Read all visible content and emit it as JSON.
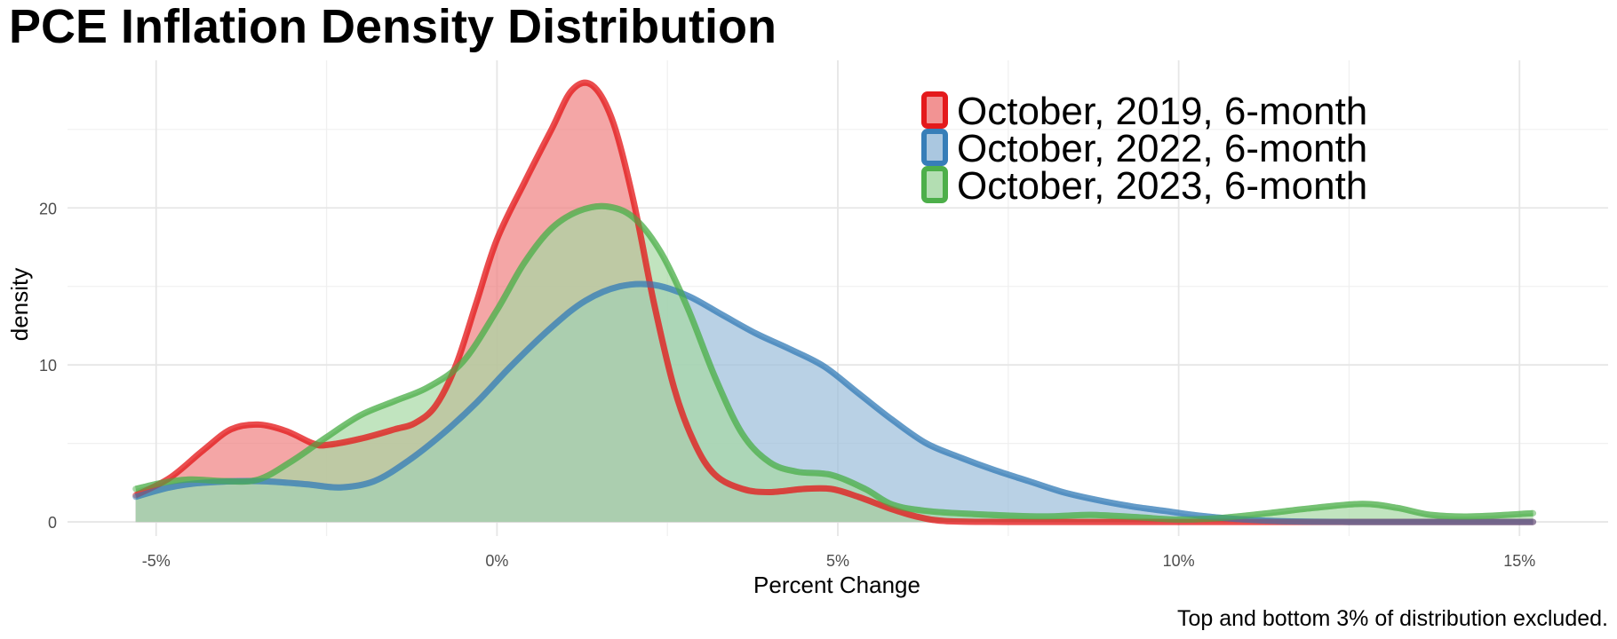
{
  "chart_data": {
    "type": "area",
    "title": "PCE Inflation Density Distribution",
    "xlabel": "Percent Change",
    "ylabel": "density",
    "caption": "Top and bottom 3% of distribution excluded.",
    "xlim": [
      -6.3,
      16.3
    ],
    "ylim": [
      -0.9,
      29.4
    ],
    "x_ticks": [
      -5,
      0,
      5,
      10,
      15
    ],
    "x_tick_labels": [
      "-5%",
      "0%",
      "5%",
      "10%",
      "15%"
    ],
    "y_ticks": [
      0,
      10,
      20
    ],
    "y_tick_labels": [
      "0",
      "10",
      "20"
    ],
    "grid": true,
    "legend_position": "top-right",
    "series": [
      {
        "name": "October, 2019, 6-month",
        "color": "#E41A1C",
        "fill": "#F08080",
        "points": [
          [
            -5.3,
            1.7
          ],
          [
            -4.8,
            2.8
          ],
          [
            -4.3,
            4.6
          ],
          [
            -3.9,
            5.9
          ],
          [
            -3.5,
            6.2
          ],
          [
            -3.1,
            5.8
          ],
          [
            -2.7,
            5.0
          ],
          [
            -2.5,
            4.9
          ],
          [
            -2.0,
            5.3
          ],
          [
            -1.5,
            5.9
          ],
          [
            -1.2,
            6.3
          ],
          [
            -0.9,
            7.4
          ],
          [
            -0.6,
            10.0
          ],
          [
            -0.3,
            14.0
          ],
          [
            0.0,
            18.0
          ],
          [
            0.4,
            21.6
          ],
          [
            0.8,
            25.0
          ],
          [
            1.1,
            27.5
          ],
          [
            1.4,
            27.8
          ],
          [
            1.7,
            25.5
          ],
          [
            2.0,
            20.5
          ],
          [
            2.3,
            14.0
          ],
          [
            2.6,
            8.5
          ],
          [
            2.9,
            5.0
          ],
          [
            3.2,
            3.0
          ],
          [
            3.6,
            2.1
          ],
          [
            4.0,
            1.9
          ],
          [
            4.5,
            2.1
          ],
          [
            4.9,
            2.1
          ],
          [
            5.3,
            1.6
          ],
          [
            5.8,
            0.8
          ],
          [
            6.2,
            0.3
          ],
          [
            6.6,
            0.05
          ],
          [
            7.5,
            0.0
          ],
          [
            9.0,
            0.0
          ],
          [
            11.0,
            0.0
          ],
          [
            13.0,
            0.0
          ],
          [
            15.2,
            0.0
          ]
        ]
      },
      {
        "name": "October, 2022, 6-month",
        "color": "#377EB8",
        "fill": "#9BBDDA",
        "points": [
          [
            -5.3,
            1.6
          ],
          [
            -4.8,
            2.2
          ],
          [
            -4.3,
            2.5
          ],
          [
            -3.5,
            2.6
          ],
          [
            -2.8,
            2.4
          ],
          [
            -2.3,
            2.2
          ],
          [
            -1.8,
            2.6
          ],
          [
            -1.3,
            3.9
          ],
          [
            -0.8,
            5.6
          ],
          [
            -0.3,
            7.6
          ],
          [
            0.2,
            9.9
          ],
          [
            0.8,
            12.4
          ],
          [
            1.3,
            14.1
          ],
          [
            1.8,
            15.0
          ],
          [
            2.3,
            15.1
          ],
          [
            2.8,
            14.4
          ],
          [
            3.3,
            13.2
          ],
          [
            3.8,
            12.0
          ],
          [
            4.3,
            11.0
          ],
          [
            4.8,
            9.9
          ],
          [
            5.3,
            8.2
          ],
          [
            5.8,
            6.5
          ],
          [
            6.3,
            5.0
          ],
          [
            6.8,
            4.1
          ],
          [
            7.3,
            3.3
          ],
          [
            7.8,
            2.6
          ],
          [
            8.3,
            1.9
          ],
          [
            8.8,
            1.4
          ],
          [
            9.3,
            1.0
          ],
          [
            9.8,
            0.7
          ],
          [
            10.3,
            0.4
          ],
          [
            10.8,
            0.2
          ],
          [
            11.5,
            0.05
          ],
          [
            12.5,
            0.0
          ],
          [
            14.0,
            0.0
          ],
          [
            15.2,
            0.0
          ]
        ]
      },
      {
        "name": "October, 2023, 6-month",
        "color": "#4DAF4A",
        "fill": "#A6D8A4",
        "points": [
          [
            -5.3,
            2.1
          ],
          [
            -4.9,
            2.5
          ],
          [
            -4.5,
            2.7
          ],
          [
            -4.0,
            2.6
          ],
          [
            -3.5,
            2.7
          ],
          [
            -3.0,
            3.9
          ],
          [
            -2.5,
            5.4
          ],
          [
            -2.0,
            6.8
          ],
          [
            -1.5,
            7.7
          ],
          [
            -1.0,
            8.6
          ],
          [
            -0.5,
            10.2
          ],
          [
            0.0,
            13.5
          ],
          [
            0.4,
            16.5
          ],
          [
            0.8,
            18.7
          ],
          [
            1.2,
            19.8
          ],
          [
            1.6,
            20.1
          ],
          [
            2.0,
            19.4
          ],
          [
            2.4,
            17.2
          ],
          [
            2.8,
            13.6
          ],
          [
            3.2,
            9.2
          ],
          [
            3.6,
            5.6
          ],
          [
            4.0,
            3.8
          ],
          [
            4.4,
            3.2
          ],
          [
            4.9,
            3.0
          ],
          [
            5.4,
            2.1
          ],
          [
            5.8,
            1.1
          ],
          [
            6.3,
            0.7
          ],
          [
            7.0,
            0.5
          ],
          [
            8.0,
            0.35
          ],
          [
            8.7,
            0.45
          ],
          [
            9.4,
            0.3
          ],
          [
            10.0,
            0.15
          ],
          [
            10.6,
            0.25
          ],
          [
            11.3,
            0.55
          ],
          [
            12.0,
            0.9
          ],
          [
            12.7,
            1.15
          ],
          [
            13.2,
            0.9
          ],
          [
            13.7,
            0.45
          ],
          [
            14.3,
            0.35
          ],
          [
            15.2,
            0.55
          ]
        ]
      }
    ]
  }
}
